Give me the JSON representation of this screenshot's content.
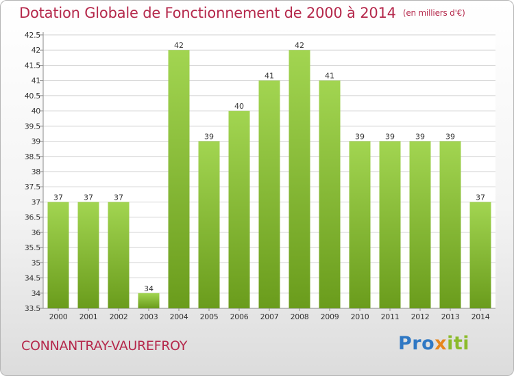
{
  "header": {
    "title": "Dotation Globale de Fonctionnement de 2000 à 2014",
    "unit": "(en milliers d'€)"
  },
  "footer": {
    "commune": "CONNANTRAY-VAUREFROY",
    "brand_a": "Pro",
    "brand_b": "x",
    "brand_c": "iti"
  },
  "colors": {
    "title": "#b5284b",
    "bar_light": "#a2d551",
    "bar_dark": "#6a9c1c",
    "grid": "#d0d0d0"
  },
  "chart_data": {
    "type": "bar",
    "title": "Dotation Globale de Fonctionnement de 2000 à 2014",
    "subtitle": "(en milliers d'€)",
    "categories": [
      "2000",
      "2001",
      "2002",
      "2003",
      "2004",
      "2005",
      "2006",
      "2007",
      "2008",
      "2009",
      "2010",
      "2011",
      "2012",
      "2013",
      "2014"
    ],
    "values": [
      37,
      37,
      37,
      34,
      42,
      39,
      40,
      41,
      42,
      41,
      39,
      39,
      39,
      39,
      37
    ],
    "data_labels": [
      "37",
      "37",
      "37",
      "34",
      "42",
      "39",
      "40",
      "41",
      "42",
      "41",
      "39",
      "39",
      "39",
      "39",
      "37"
    ],
    "yticks": [
      "33.5",
      "34",
      "34.5",
      "35",
      "35.5",
      "36",
      "36.5",
      "37",
      "37.5",
      "38",
      "38.5",
      "39",
      "39.5",
      "40",
      "40.5",
      "41",
      "41.5",
      "42",
      "42.5"
    ],
    "ylim": [
      33.5,
      42.5
    ],
    "grid": true,
    "legend": "none"
  }
}
